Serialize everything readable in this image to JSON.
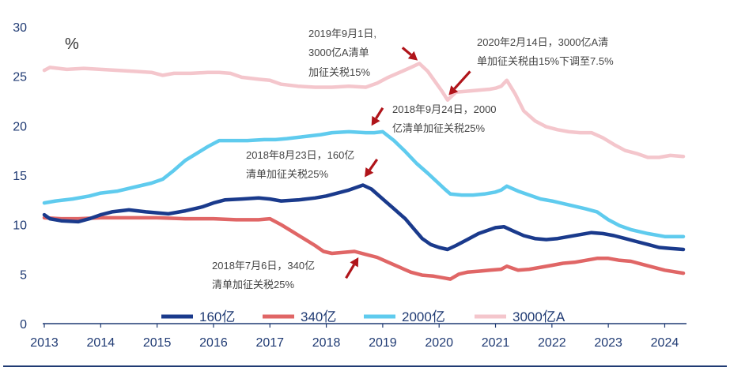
{
  "chart_data": {
    "type": "line",
    "unit_label": "%",
    "ylim": [
      0,
      30
    ],
    "xlim": [
      2013,
      2024.33
    ],
    "y_ticks": [
      "0",
      "5",
      "10",
      "15",
      "20",
      "25",
      "30"
    ],
    "x_ticks": [
      "2013",
      "2014",
      "2015",
      "2016",
      "2017",
      "2018",
      "2019",
      "2020",
      "2021",
      "2022",
      "2023",
      "2024"
    ],
    "series": [
      {
        "name": "160亿",
        "color": "#1a3a8c",
        "points": [
          [
            2013.0,
            11.0
          ],
          [
            2013.1,
            10.6
          ],
          [
            2013.3,
            10.4
          ],
          [
            2013.6,
            10.3
          ],
          [
            2013.8,
            10.6
          ],
          [
            2014.0,
            11.0
          ],
          [
            2014.2,
            11.3
          ],
          [
            2014.5,
            11.5
          ],
          [
            2014.8,
            11.3
          ],
          [
            2015.0,
            11.2
          ],
          [
            2015.2,
            11.1
          ],
          [
            2015.5,
            11.4
          ],
          [
            2015.8,
            11.8
          ],
          [
            2016.0,
            12.2
          ],
          [
            2016.2,
            12.5
          ],
          [
            2016.5,
            12.6
          ],
          [
            2016.8,
            12.7
          ],
          [
            2017.0,
            12.6
          ],
          [
            2017.2,
            12.4
          ],
          [
            2017.5,
            12.5
          ],
          [
            2017.8,
            12.7
          ],
          [
            2018.0,
            12.9
          ],
          [
            2018.2,
            13.2
          ],
          [
            2018.4,
            13.5
          ],
          [
            2018.55,
            13.8
          ],
          [
            2018.65,
            14.0
          ],
          [
            2018.8,
            13.6
          ],
          [
            2019.0,
            12.6
          ],
          [
            2019.2,
            11.6
          ],
          [
            2019.4,
            10.6
          ],
          [
            2019.55,
            9.6
          ],
          [
            2019.7,
            8.6
          ],
          [
            2019.85,
            8.0
          ],
          [
            2020.0,
            7.7
          ],
          [
            2020.15,
            7.5
          ],
          [
            2020.3,
            7.9
          ],
          [
            2020.5,
            8.5
          ],
          [
            2020.7,
            9.1
          ],
          [
            2020.9,
            9.5
          ],
          [
            2021.0,
            9.7
          ],
          [
            2021.15,
            9.8
          ],
          [
            2021.3,
            9.4
          ],
          [
            2021.5,
            8.9
          ],
          [
            2021.7,
            8.6
          ],
          [
            2021.9,
            8.5
          ],
          [
            2022.1,
            8.6
          ],
          [
            2022.3,
            8.8
          ],
          [
            2022.5,
            9.0
          ],
          [
            2022.7,
            9.2
          ],
          [
            2022.9,
            9.1
          ],
          [
            2023.1,
            8.9
          ],
          [
            2023.3,
            8.6
          ],
          [
            2023.5,
            8.3
          ],
          [
            2023.7,
            8.0
          ],
          [
            2023.9,
            7.7
          ],
          [
            2024.1,
            7.6
          ],
          [
            2024.33,
            7.5
          ]
        ]
      },
      {
        "name": "340亿",
        "color": "#e06666",
        "points": [
          [
            2013.0,
            10.7
          ],
          [
            2013.3,
            10.6
          ],
          [
            2013.6,
            10.6
          ],
          [
            2014.0,
            10.7
          ],
          [
            2014.5,
            10.7
          ],
          [
            2015.0,
            10.7
          ],
          [
            2015.5,
            10.6
          ],
          [
            2016.0,
            10.6
          ],
          [
            2016.4,
            10.5
          ],
          [
            2016.8,
            10.5
          ],
          [
            2017.0,
            10.6
          ],
          [
            2017.2,
            10.0
          ],
          [
            2017.4,
            9.3
          ],
          [
            2017.6,
            8.6
          ],
          [
            2017.8,
            7.9
          ],
          [
            2017.95,
            7.3
          ],
          [
            2018.1,
            7.1
          ],
          [
            2018.3,
            7.2
          ],
          [
            2018.5,
            7.3
          ],
          [
            2018.7,
            7.0
          ],
          [
            2018.9,
            6.7
          ],
          [
            2019.1,
            6.2
          ],
          [
            2019.3,
            5.7
          ],
          [
            2019.5,
            5.2
          ],
          [
            2019.7,
            4.9
          ],
          [
            2019.9,
            4.8
          ],
          [
            2020.1,
            4.6
          ],
          [
            2020.2,
            4.5
          ],
          [
            2020.35,
            5.0
          ],
          [
            2020.5,
            5.2
          ],
          [
            2020.7,
            5.3
          ],
          [
            2020.9,
            5.4
          ],
          [
            2021.1,
            5.5
          ],
          [
            2021.2,
            5.8
          ],
          [
            2021.4,
            5.4
          ],
          [
            2021.6,
            5.5
          ],
          [
            2021.8,
            5.7
          ],
          [
            2022.0,
            5.9
          ],
          [
            2022.2,
            6.1
          ],
          [
            2022.4,
            6.2
          ],
          [
            2022.6,
            6.4
          ],
          [
            2022.8,
            6.6
          ],
          [
            2023.0,
            6.6
          ],
          [
            2023.2,
            6.4
          ],
          [
            2023.4,
            6.3
          ],
          [
            2023.6,
            6.0
          ],
          [
            2023.8,
            5.7
          ],
          [
            2024.0,
            5.4
          ],
          [
            2024.33,
            5.1
          ]
        ]
      },
      {
        "name": "2000亿",
        "color": "#5fcbee",
        "points": [
          [
            2013.0,
            12.2
          ],
          [
            2013.2,
            12.4
          ],
          [
            2013.5,
            12.6
          ],
          [
            2013.8,
            12.9
          ],
          [
            2014.0,
            13.2
          ],
          [
            2014.3,
            13.4
          ],
          [
            2014.6,
            13.8
          ],
          [
            2014.9,
            14.2
          ],
          [
            2015.1,
            14.6
          ],
          [
            2015.3,
            15.5
          ],
          [
            2015.5,
            16.5
          ],
          [
            2015.7,
            17.2
          ],
          [
            2015.9,
            17.9
          ],
          [
            2016.1,
            18.5
          ],
          [
            2016.3,
            18.5
          ],
          [
            2016.6,
            18.5
          ],
          [
            2016.9,
            18.6
          ],
          [
            2017.1,
            18.6
          ],
          [
            2017.3,
            18.7
          ],
          [
            2017.6,
            18.9
          ],
          [
            2017.9,
            19.1
          ],
          [
            2018.1,
            19.3
          ],
          [
            2018.4,
            19.4
          ],
          [
            2018.7,
            19.3
          ],
          [
            2018.85,
            19.3
          ],
          [
            2019.0,
            19.4
          ],
          [
            2019.2,
            18.5
          ],
          [
            2019.4,
            17.4
          ],
          [
            2019.6,
            16.2
          ],
          [
            2019.8,
            15.2
          ],
          [
            2019.95,
            14.4
          ],
          [
            2020.1,
            13.6
          ],
          [
            2020.2,
            13.1
          ],
          [
            2020.4,
            13.0
          ],
          [
            2020.6,
            13.0
          ],
          [
            2020.8,
            13.1
          ],
          [
            2021.0,
            13.3
          ],
          [
            2021.1,
            13.5
          ],
          [
            2021.2,
            13.9
          ],
          [
            2021.4,
            13.4
          ],
          [
            2021.6,
            13.0
          ],
          [
            2021.8,
            12.6
          ],
          [
            2022.0,
            12.4
          ],
          [
            2022.3,
            12.0
          ],
          [
            2022.6,
            11.6
          ],
          [
            2022.8,
            11.3
          ],
          [
            2023.0,
            10.5
          ],
          [
            2023.2,
            9.9
          ],
          [
            2023.4,
            9.5
          ],
          [
            2023.7,
            9.1
          ],
          [
            2024.0,
            8.8
          ],
          [
            2024.33,
            8.8
          ]
        ]
      },
      {
        "name": "3000亿A",
        "color": "#f4c6cc",
        "points": [
          [
            2013.0,
            25.6
          ],
          [
            2013.1,
            25.9
          ],
          [
            2013.4,
            25.7
          ],
          [
            2013.7,
            25.8
          ],
          [
            2014.0,
            25.7
          ],
          [
            2014.3,
            25.6
          ],
          [
            2014.6,
            25.5
          ],
          [
            2014.9,
            25.4
          ],
          [
            2015.1,
            25.1
          ],
          [
            2015.3,
            25.3
          ],
          [
            2015.6,
            25.3
          ],
          [
            2015.9,
            25.4
          ],
          [
            2016.1,
            25.4
          ],
          [
            2016.3,
            25.3
          ],
          [
            2016.5,
            24.9
          ],
          [
            2016.8,
            24.7
          ],
          [
            2017.0,
            24.6
          ],
          [
            2017.2,
            24.2
          ],
          [
            2017.5,
            24.0
          ],
          [
            2017.8,
            23.9
          ],
          [
            2018.1,
            23.9
          ],
          [
            2018.4,
            24.0
          ],
          [
            2018.7,
            23.9
          ],
          [
            2018.9,
            24.3
          ],
          [
            2019.1,
            24.9
          ],
          [
            2019.3,
            25.4
          ],
          [
            2019.5,
            25.9
          ],
          [
            2019.65,
            26.3
          ],
          [
            2019.8,
            25.5
          ],
          [
            2019.95,
            24.3
          ],
          [
            2020.05,
            23.5
          ],
          [
            2020.15,
            22.6
          ],
          [
            2020.3,
            23.4
          ],
          [
            2020.5,
            23.5
          ],
          [
            2020.7,
            23.6
          ],
          [
            2020.9,
            23.7
          ],
          [
            2021.0,
            23.8
          ],
          [
            2021.1,
            24.0
          ],
          [
            2021.2,
            24.6
          ],
          [
            2021.35,
            23.2
          ],
          [
            2021.5,
            21.5
          ],
          [
            2021.7,
            20.5
          ],
          [
            2021.9,
            19.9
          ],
          [
            2022.1,
            19.6
          ],
          [
            2022.3,
            19.4
          ],
          [
            2022.5,
            19.3
          ],
          [
            2022.7,
            19.3
          ],
          [
            2022.9,
            18.8
          ],
          [
            2023.1,
            18.1
          ],
          [
            2023.3,
            17.5
          ],
          [
            2023.5,
            17.2
          ],
          [
            2023.7,
            16.8
          ],
          [
            2023.9,
            16.8
          ],
          [
            2024.1,
            17.0
          ],
          [
            2024.33,
            16.9
          ]
        ]
      }
    ],
    "annotations": [
      {
        "lines": [
          "2019年9月1日,",
          "3000亿A清单",
          "加征关税15%"
        ]
      },
      {
        "lines": [
          "2020年2月14日，3000亿A清",
          "单加征关税由15%下调至7.5%"
        ]
      },
      {
        "lines": [
          "2018年9月24日，2000",
          "亿清单加征关税25%"
        ]
      },
      {
        "lines": [
          "2018年8月23日，160亿",
          "清单加征关税25%"
        ]
      },
      {
        "lines": [
          "2018年7月6日，340亿",
          "清单加征关税25%"
        ]
      }
    ],
    "arrow_color": "#b0141a",
    "legend_position": "bottom"
  }
}
